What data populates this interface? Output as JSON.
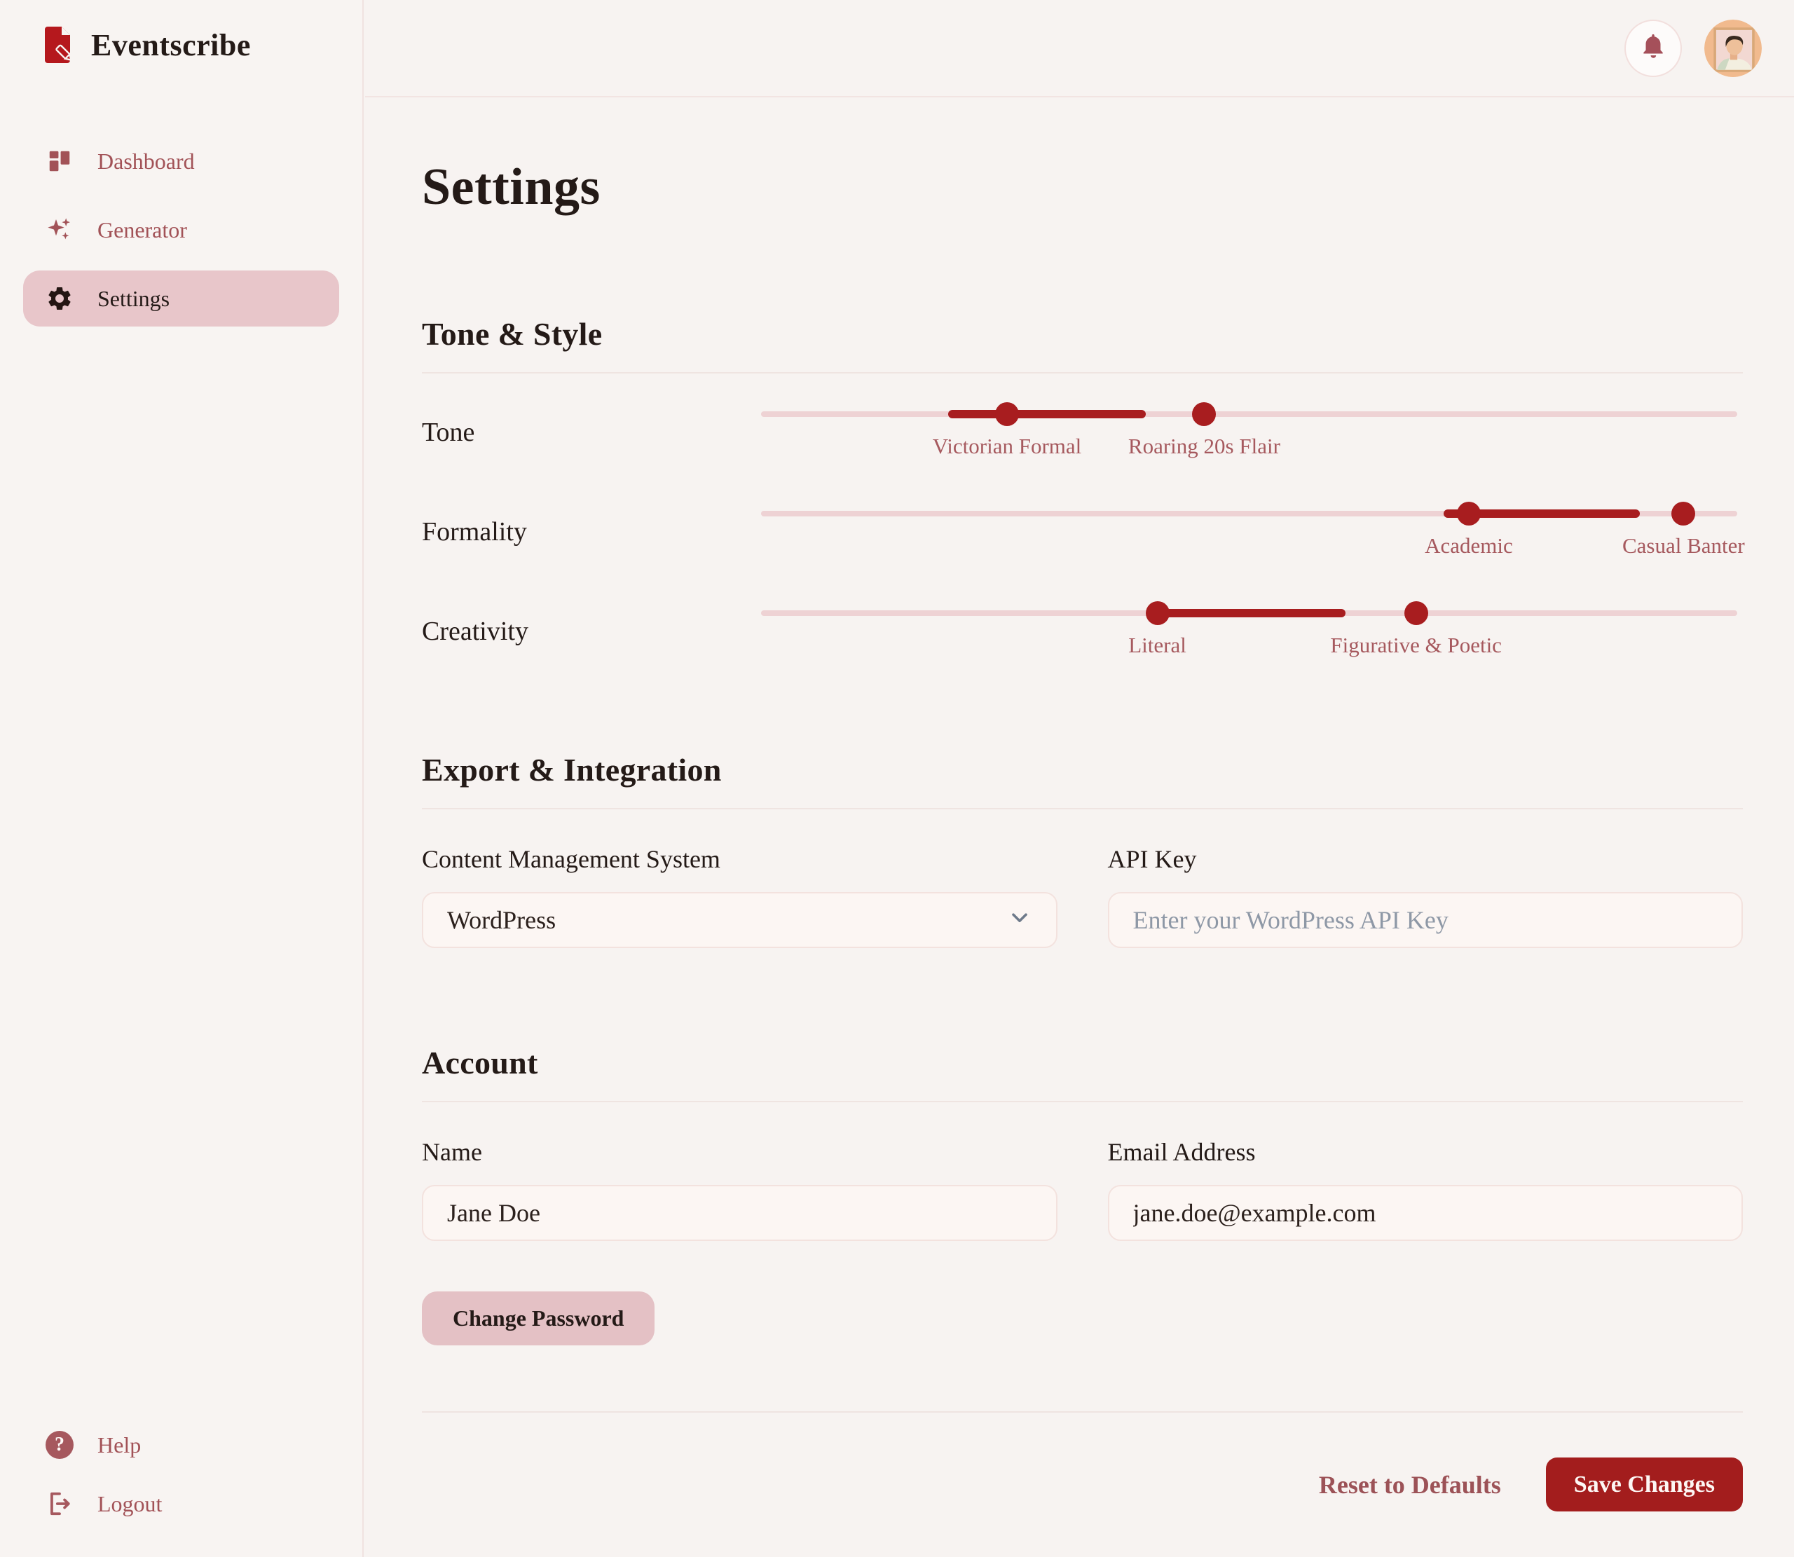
{
  "colors": {
    "page_bg": "#f7f3f1",
    "brand_red": "#b5181d",
    "slider_red": "#a81d1f",
    "save_red": "#a31d1d",
    "muted_red": "#a6595e",
    "active_pill_pink": "#e8c6ca",
    "track_pink": "#eed2d4",
    "input_bg": "#fcf6f3",
    "placeholder_gray": "#8e98a6",
    "text_dark": "#241a17"
  },
  "sidebar": {
    "brand": "Eventscribe",
    "logo_icon": "document-pencil-icon",
    "items": [
      {
        "label": "Dashboard",
        "icon": "dashboard-grid-icon",
        "active": false
      },
      {
        "label": "Generator",
        "icon": "sparkles-icon",
        "active": false
      },
      {
        "label": "Settings",
        "icon": "gear-icon",
        "active": true
      }
    ],
    "footer_items": [
      {
        "label": "Help",
        "icon": "question-mark-icon"
      },
      {
        "label": "Logout",
        "icon": "logout-icon"
      }
    ]
  },
  "topbar": {
    "bell_icon": "bell-icon",
    "avatar_icon": "user-avatar"
  },
  "page": {
    "title": "Settings"
  },
  "tone_style": {
    "title": "Tone & Style",
    "sliders": [
      {
        "label": "Tone",
        "fill_start_pct": 19.2,
        "fill_end_pct": 39.4,
        "handles": [
          {
            "label": "Victorian Formal",
            "pos_pct": 25.2
          },
          {
            "label": "Roaring 20s Flair",
            "pos_pct": 45.4
          }
        ]
      },
      {
        "label": "Formality",
        "fill_start_pct": 69.9,
        "fill_end_pct": 90.0,
        "handles": [
          {
            "label": "Academic",
            "pos_pct": 72.5
          },
          {
            "label": "Casual Banter",
            "pos_pct": 94.5
          }
        ]
      },
      {
        "label": "Creativity",
        "fill_start_pct": 40.2,
        "fill_end_pct": 59.9,
        "handles": [
          {
            "label": "Literal",
            "pos_pct": 40.6
          },
          {
            "label": "Figurative & Poetic",
            "pos_pct": 67.1
          }
        ]
      }
    ]
  },
  "export_integration": {
    "title": "Export & Integration",
    "cms": {
      "label": "Content Management System",
      "value": "WordPress",
      "icon": "chevron-down-icon"
    },
    "api_key": {
      "label": "API Key",
      "value": "",
      "placeholder": "Enter your WordPress API Key"
    }
  },
  "account": {
    "title": "Account",
    "name": {
      "label": "Name",
      "value": "Jane Doe"
    },
    "email": {
      "label": "Email Address",
      "value": "jane.doe@example.com"
    },
    "change_password_label": "Change Password"
  },
  "footer": {
    "reset_label": "Reset to Defaults",
    "save_label": "Save Changes"
  }
}
